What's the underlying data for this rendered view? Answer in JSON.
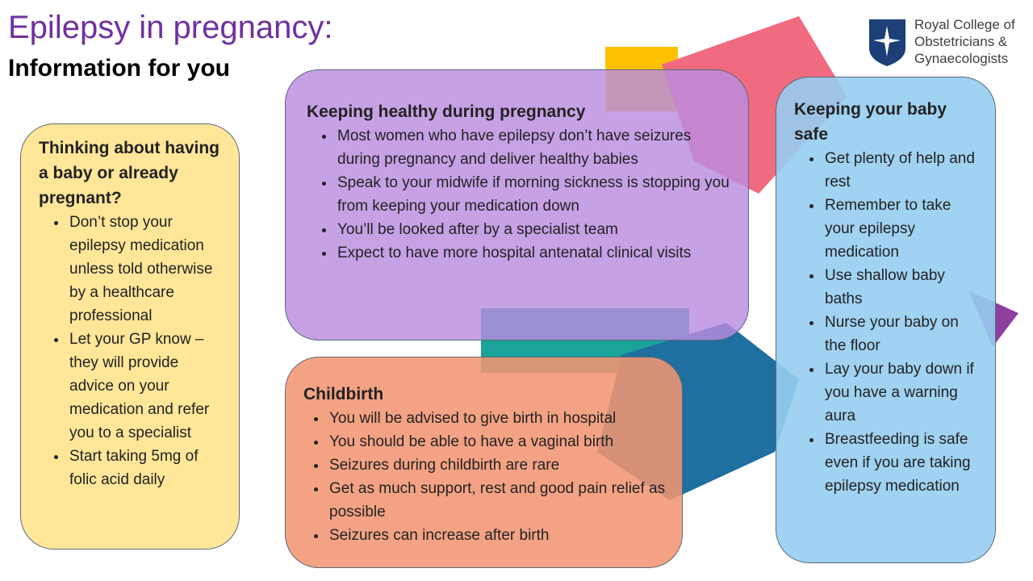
{
  "header": {
    "title": "Epilepsy in pregnancy:",
    "subtitle": "Information for you"
  },
  "logo": {
    "lines": [
      "Royal College of",
      "Obstetricians &",
      "Gynaecologists"
    ]
  },
  "sections": [
    {
      "heading": "Thinking about having a baby or already pregnant?",
      "items": [
        "Don’t stop your epilepsy medication unless told otherwise by a healthcare professional",
        "Let your GP know – they will provide advice on your medication and refer you to a specialist",
        "Start taking 5mg of folic acid daily"
      ]
    },
    {
      "heading": "Keeping healthy during pregnancy",
      "items": [
        "Most women who have epilepsy don’t have seizures during pregnancy and deliver healthy babies",
        "Speak to your midwife if morning sickness is stopping you from keeping your medication down",
        "You’ll be looked after by a specialist team",
        "Expect to have more hospital antenatal clinical visits"
      ]
    },
    {
      "heading": "Childbirth",
      "items": [
        "You will be advised to give birth in hospital",
        "You should be able to have a vaginal birth",
        "Seizures during childbirth are rare",
        "Get as much support, rest and good pain relief as possible",
        "Seizures can increase after birth"
      ]
    },
    {
      "heading": "Keeping your baby safe",
      "items": [
        "Get plenty of help and rest",
        "Remember to take your epilepsy medication",
        "Use shallow baby baths",
        "Nurse your baby on the floor",
        "Lay your baby down if you have a warning aura",
        "Breastfeeding is safe even if you are taking epilepsy medication"
      ]
    }
  ]
}
